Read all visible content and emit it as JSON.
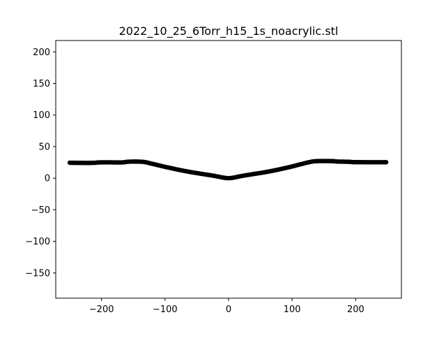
{
  "chart_data": {
    "type": "scatter",
    "title": "2022_10_25_6Torr_h15_1s_noacrylic.stl",
    "xlabel": "",
    "ylabel": "",
    "xlim": [
      -272,
      272
    ],
    "ylim": [
      -190,
      218
    ],
    "xticks": [
      -200,
      -100,
      0,
      100,
      200
    ],
    "yticks": [
      -150,
      -100,
      -50,
      0,
      50,
      100,
      150,
      200
    ],
    "grid": false,
    "marker_color": "#000000",
    "series": [
      {
        "points": [
          [
            -250,
            24.5
          ],
          [
            -245,
            24.4
          ],
          [
            -240,
            24.3
          ],
          [
            -235,
            24.3
          ],
          [
            -230,
            24.2
          ],
          [
            -225,
            24.2
          ],
          [
            -220,
            24.2
          ],
          [
            -215,
            24.3
          ],
          [
            -210,
            24.4
          ],
          [
            -205,
            25.0
          ],
          [
            -200,
            25.1
          ],
          [
            -195,
            25.1
          ],
          [
            -190,
            25.1
          ],
          [
            -185,
            25.1
          ],
          [
            -180,
            25.0
          ],
          [
            -175,
            25.0
          ],
          [
            -170,
            25.0
          ],
          [
            -165,
            25.1
          ],
          [
            -160,
            26.0
          ],
          [
            -155,
            26.2
          ],
          [
            -150,
            26.3
          ],
          [
            -145,
            26.3
          ],
          [
            -140,
            26.2
          ],
          [
            -135,
            26.0
          ],
          [
            -130,
            25.2
          ],
          [
            -125,
            24.0
          ],
          [
            -120,
            22.8
          ],
          [
            -115,
            21.6
          ],
          [
            -110,
            20.4
          ],
          [
            -105,
            19.2
          ],
          [
            -100,
            18.0
          ],
          [
            -95,
            16.9
          ],
          [
            -90,
            15.8
          ],
          [
            -85,
            14.7
          ],
          [
            -80,
            13.6
          ],
          [
            -75,
            12.6
          ],
          [
            -70,
            11.6
          ],
          [
            -65,
            10.7
          ],
          [
            -60,
            9.8
          ],
          [
            -55,
            8.9
          ],
          [
            -50,
            8.1
          ],
          [
            -45,
            7.3
          ],
          [
            -40,
            6.5
          ],
          [
            -35,
            5.7
          ],
          [
            -30,
            4.9
          ],
          [
            -25,
            4.1
          ],
          [
            -20,
            3.2
          ],
          [
            -15,
            2.2
          ],
          [
            -10,
            1.2
          ],
          [
            -5,
            0.4
          ],
          [
            0,
            0.0
          ],
          [
            5,
            0.4
          ],
          [
            10,
            1.3
          ],
          [
            15,
            2.4
          ],
          [
            20,
            3.4
          ],
          [
            25,
            4.3
          ],
          [
            30,
            5.1
          ],
          [
            35,
            5.9
          ],
          [
            40,
            6.7
          ],
          [
            45,
            7.5
          ],
          [
            50,
            8.3
          ],
          [
            55,
            9.1
          ],
          [
            60,
            10.0
          ],
          [
            65,
            10.9
          ],
          [
            70,
            11.9
          ],
          [
            75,
            12.9
          ],
          [
            80,
            14.0
          ],
          [
            85,
            15.1
          ],
          [
            90,
            16.2
          ],
          [
            95,
            17.4
          ],
          [
            100,
            18.6
          ],
          [
            105,
            19.9
          ],
          [
            110,
            21.2
          ],
          [
            115,
            22.5
          ],
          [
            120,
            23.8
          ],
          [
            125,
            25.0
          ],
          [
            130,
            26.1
          ],
          [
            135,
            26.8
          ],
          [
            140,
            27.1
          ],
          [
            145,
            27.2
          ],
          [
            150,
            27.2
          ],
          [
            155,
            27.2
          ],
          [
            160,
            27.1
          ],
          [
            165,
            27.0
          ],
          [
            170,
            26.4
          ],
          [
            175,
            26.2
          ],
          [
            180,
            26.2
          ],
          [
            185,
            26.1
          ],
          [
            190,
            26.0
          ],
          [
            195,
            25.5
          ],
          [
            200,
            25.4
          ],
          [
            205,
            25.4
          ],
          [
            210,
            25.4
          ],
          [
            215,
            25.3
          ],
          [
            220,
            25.3
          ],
          [
            225,
            25.3
          ],
          [
            230,
            25.3
          ],
          [
            235,
            25.3
          ],
          [
            240,
            25.3
          ],
          [
            245,
            25.3
          ],
          [
            248,
            25.3
          ]
        ]
      }
    ]
  }
}
